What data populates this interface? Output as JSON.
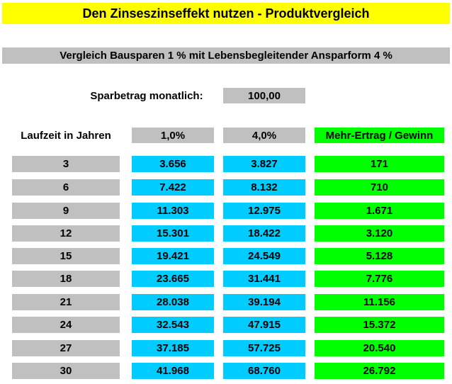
{
  "title": "Den Zinseszinseffekt nutzen - Produktvergleich",
  "subtitle": "Vergleich Bausparen 1 % mit Lebensbegleitender Ansparform 4 %",
  "sparbetrag": {
    "label": "Sparbetrag monatlich:",
    "value": "100,00"
  },
  "headers": {
    "laufzeit": "Laufzeit in Jahren",
    "rate1": "1,0%",
    "rate4": "4,0%",
    "mehr": "Mehr-Ertrag / Gewinn"
  },
  "rows": [
    {
      "jahre": "3",
      "r1": "3.656",
      "r4": "3.827",
      "mehr": "171"
    },
    {
      "jahre": "6",
      "r1": "7.422",
      "r4": "8.132",
      "mehr": "710"
    },
    {
      "jahre": "9",
      "r1": "11.303",
      "r4": "12.975",
      "mehr": "1.671"
    },
    {
      "jahre": "12",
      "r1": "15.301",
      "r4": "18.422",
      "mehr": "3.120"
    },
    {
      "jahre": "15",
      "r1": "19.421",
      "r4": "24.549",
      "mehr": "5.128"
    },
    {
      "jahre": "18",
      "r1": "23.665",
      "r4": "31.441",
      "mehr": "7.776"
    },
    {
      "jahre": "21",
      "r1": "28.038",
      "r4": "39.194",
      "mehr": "11.156"
    },
    {
      "jahre": "24",
      "r1": "32.543",
      "r4": "47.915",
      "mehr": "15.372"
    },
    {
      "jahre": "27",
      "r1": "37.185",
      "r4": "57.725",
      "mehr": "20.540"
    },
    {
      "jahre": "30",
      "r1": "41.968",
      "r4": "68.760",
      "mehr": "26.792"
    }
  ],
  "colors": {
    "title_bg": "#ffff00",
    "header_gray": "#c0c0c0",
    "value_cyan": "#00ccff",
    "gain_green": "#00ff00"
  }
}
